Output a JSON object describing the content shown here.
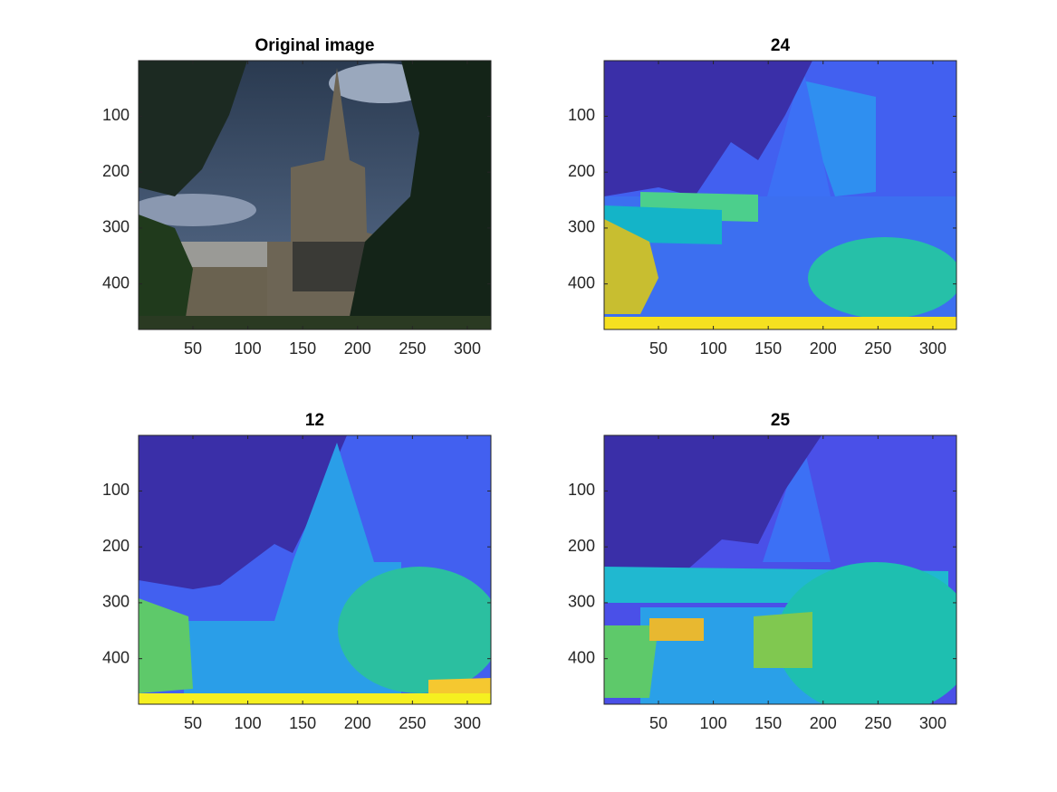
{
  "chart_data": [
    {
      "type": "image",
      "title": "Original image",
      "xlim": [
        0.5,
        321.5
      ],
      "ylim": [
        0.5,
        481.5
      ],
      "y_direction": "reverse",
      "xticks": [
        50,
        100,
        150,
        200,
        250,
        300
      ],
      "yticks": [
        100,
        200,
        300,
        400
      ]
    },
    {
      "type": "image",
      "title": "24",
      "xlim": [
        0.5,
        321.5
      ],
      "ylim": [
        0.5,
        481.5
      ],
      "y_direction": "reverse",
      "xticks": [
        50,
        100,
        150,
        200,
        250,
        300
      ],
      "yticks": [
        100,
        200,
        300,
        400
      ]
    },
    {
      "type": "image",
      "title": "12",
      "xlim": [
        0.5,
        321.5
      ],
      "ylim": [
        0.5,
        481.5
      ],
      "y_direction": "reverse",
      "xticks": [
        50,
        100,
        150,
        200,
        250,
        300
      ],
      "yticks": [
        100,
        200,
        300,
        400
      ]
    },
    {
      "type": "image",
      "title": "25",
      "xlim": [
        0.5,
        321.5
      ],
      "ylim": [
        0.5,
        481.5
      ],
      "y_direction": "reverse",
      "xticks": [
        50,
        100,
        150,
        200,
        250,
        300
      ],
      "yticks": [
        100,
        200,
        300,
        400
      ]
    }
  ]
}
